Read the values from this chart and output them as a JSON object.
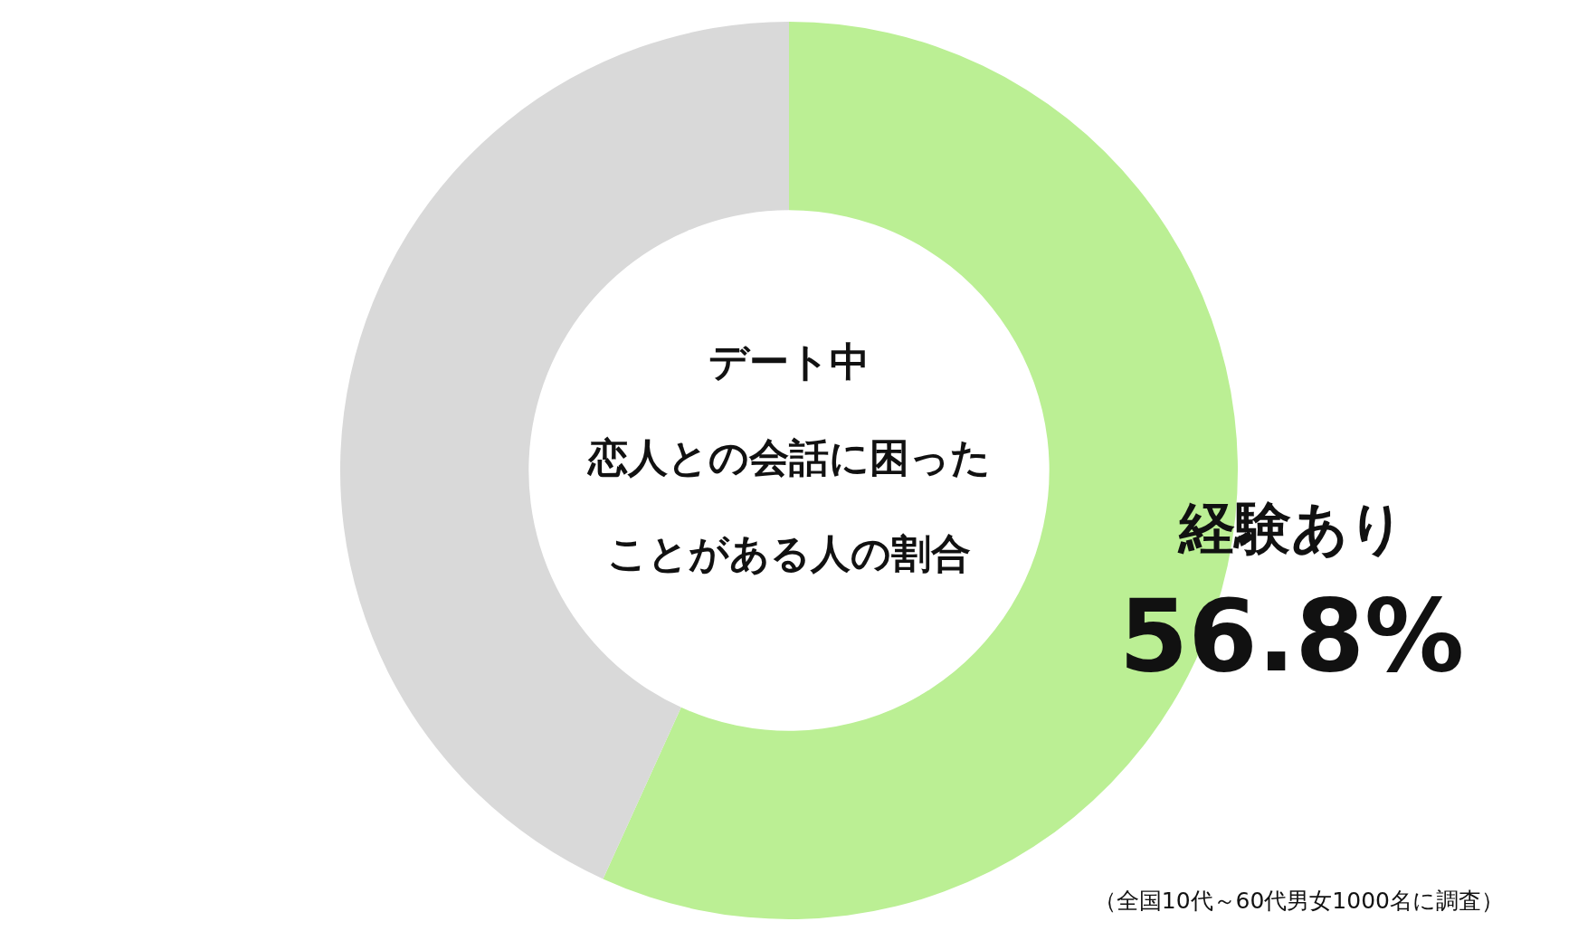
{
  "chart_data": {
    "type": "donut",
    "title": "デート中",
    "subtitle": "恋人との会話に困ったことがある人の割合",
    "categories": [
      "経験あり",
      null
    ],
    "values": [
      56.8,
      43.2
    ],
    "colors": [
      "#bbef94",
      "#d9d9d9"
    ],
    "value_labels": [
      "56.8%",
      null
    ],
    "legend": false,
    "annotations": [
      "（全国10代～60代男女1000名に調査）"
    ]
  }
}
